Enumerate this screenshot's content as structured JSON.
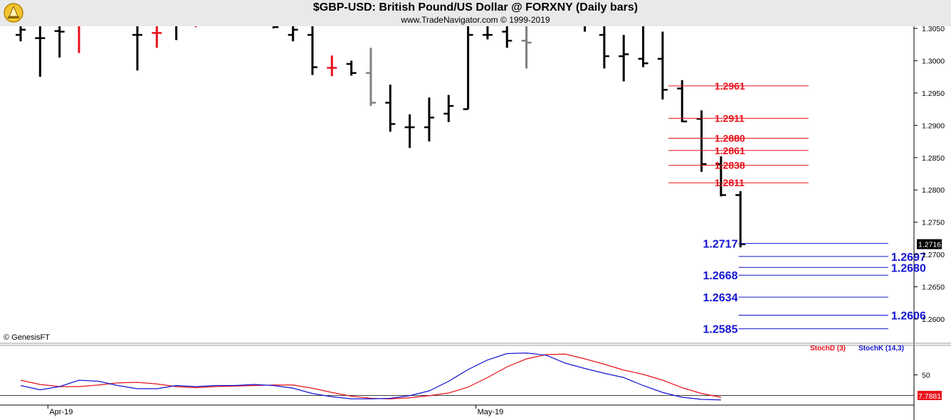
{
  "header": {
    "title": "$GBP-USD:  British Pound/US Dollar @ FORXNY  (Daily bars)",
    "subtitle": "www.TradeNavigator.com © 1999-2019"
  },
  "copyright": "© GenesisFT",
  "colors": {
    "up_bar": "#000000",
    "down_bar": "#e8101a",
    "neutral_bar": "#808080",
    "resistance": "#e8101a",
    "support": "#1414d2",
    "stoch_d": "#e8101a",
    "stoch_k": "#1414d2",
    "last_price_box": "#000000",
    "stoch_value_box": "#e8101a"
  },
  "chart_data": [
    {
      "type": "ohlc",
      "title": "$GBP-USD:  British Pound/US Dollar @ FORXNY  (Daily bars)",
      "y_ticks": [
        "1.2600",
        "1.2650",
        "1.2700",
        "1.2750",
        "1.2800",
        "1.2850",
        "1.2900",
        "1.2950",
        "1.3000",
        "1.3050"
      ],
      "ylim": [
        1.2573,
        1.306
      ],
      "x_ticks": [
        {
          "label": "Apr-19",
          "index": 1
        },
        {
          "label": "May-19",
          "index": 23
        }
      ],
      "last_price_label": "1.2716",
      "bars": [
        {
          "index": 0,
          "open": 1.304,
          "high": 1.3063,
          "low": 1.303,
          "close": 1.3048,
          "color": "up"
        },
        {
          "index": 1,
          "open": 1.3035,
          "high": 1.306,
          "low": 1.2975,
          "close": 1.3035,
          "color": "up"
        },
        {
          "index": 2,
          "open": 1.3046,
          "high": 1.3063,
          "low": 1.3005,
          "close": 1.3045,
          "color": "up"
        },
        {
          "index": 3,
          "open": 1.306,
          "high": 1.3063,
          "low": 1.3012,
          "close": 1.306,
          "color": "down"
        },
        {
          "index": 6,
          "open": 1.304,
          "high": 1.3063,
          "low": 1.2985,
          "close": 1.304,
          "color": "up"
        },
        {
          "index": 7,
          "open": 1.3043,
          "high": 1.306,
          "low": 1.302,
          "close": 1.3043,
          "color": "down"
        },
        {
          "index": 8,
          "open": 1.3055,
          "high": 1.3063,
          "low": 1.3032,
          "close": 1.3055,
          "color": "up"
        },
        {
          "index": 9,
          "open": 1.3058,
          "high": 1.3063,
          "low": 1.3052,
          "close": 1.3055,
          "color": "down"
        },
        {
          "index": 13,
          "open": 1.306,
          "high": 1.3063,
          "low": 1.305,
          "close": 1.3052,
          "color": "up"
        },
        {
          "index": 14,
          "open": 1.304,
          "high": 1.3063,
          "low": 1.303,
          "close": 1.3048,
          "color": "up"
        },
        {
          "index": 15,
          "open": 1.304,
          "high": 1.3063,
          "low": 1.2978,
          "close": 1.299,
          "color": "up"
        },
        {
          "index": 16,
          "open": 1.2989,
          "high": 1.3008,
          "low": 1.2976,
          "close": 1.2989,
          "color": "down"
        },
        {
          "index": 17,
          "open": 1.2995,
          "high": 1.3,
          "low": 1.2977,
          "close": 1.2981,
          "color": "up"
        },
        {
          "index": 18,
          "open": 1.2981,
          "high": 1.302,
          "low": 1.293,
          "close": 1.2935,
          "color": "neutral"
        },
        {
          "index": 19,
          "open": 1.2935,
          "high": 1.2963,
          "low": 1.289,
          "close": 1.2902,
          "color": "up"
        },
        {
          "index": 20,
          "open": 1.2897,
          "high": 1.2917,
          "low": 1.2865,
          "close": 1.2897,
          "color": "up"
        },
        {
          "index": 21,
          "open": 1.2897,
          "high": 1.2943,
          "low": 1.2875,
          "close": 1.2912,
          "color": "up"
        },
        {
          "index": 22,
          "open": 1.2918,
          "high": 1.2947,
          "low": 1.2905,
          "close": 1.293,
          "color": "up"
        },
        {
          "index": 23,
          "open": 1.2925,
          "high": 1.3058,
          "low": 1.2925,
          "close": 1.304,
          "color": "up"
        },
        {
          "index": 24,
          "open": 1.304,
          "high": 1.3063,
          "low": 1.3033,
          "close": 1.304,
          "color": "up"
        },
        {
          "index": 25,
          "open": 1.3045,
          "high": 1.3063,
          "low": 1.302,
          "close": 1.3031,
          "color": "up"
        },
        {
          "index": 26,
          "open": 1.3031,
          "high": 1.3063,
          "low": 1.2988,
          "close": 1.3028,
          "color": "neutral"
        },
        {
          "index": 29,
          "open": 1.3058,
          "high": 1.3063,
          "low": 1.3045,
          "close": 1.3055,
          "color": "up"
        },
        {
          "index": 30,
          "open": 1.304,
          "high": 1.3063,
          "low": 1.2988,
          "close": 1.3007,
          "color": "up"
        },
        {
          "index": 31,
          "open": 1.3007,
          "high": 1.304,
          "low": 1.2968,
          "close": 1.301,
          "color": "up"
        },
        {
          "index": 32,
          "open": 1.3003,
          "high": 1.306,
          "low": 1.299,
          "close": 1.2996,
          "color": "up"
        },
        {
          "index": 33,
          "open": 1.3003,
          "high": 1.3045,
          "low": 1.294,
          "close": 1.2955,
          "color": "up"
        },
        {
          "index": 34,
          "open": 1.2957,
          "high": 1.297,
          "low": 1.2905,
          "close": 1.2906,
          "color": "up"
        },
        {
          "index": 35,
          "open": 1.291,
          "high": 1.2923,
          "low": 1.2828,
          "close": 1.284,
          "color": "up"
        },
        {
          "index": 36,
          "open": 1.284,
          "high": 1.2852,
          "low": 1.279,
          "close": 1.2792,
          "color": "up"
        },
        {
          "index": 37,
          "open": 1.2792,
          "high": 1.2798,
          "low": 1.2711,
          "close": 1.2716,
          "color": "up"
        }
      ],
      "levels": [
        {
          "label": "1.2961",
          "value": 1.2961,
          "role": "resistance",
          "label_side": "right",
          "line_from_index": 33.3,
          "line_to_index": 40.5
        },
        {
          "label": "1.2911",
          "value": 1.2911,
          "role": "resistance",
          "label_side": "right",
          "line_from_index": 33.3,
          "line_to_index": 40.5
        },
        {
          "label": "1.2880",
          "value": 1.288,
          "role": "resistance",
          "label_side": "right",
          "line_from_index": 33.3,
          "line_to_index": 40.5
        },
        {
          "label": "1.2861",
          "value": 1.2861,
          "role": "resistance",
          "label_side": "right",
          "line_from_index": 33.3,
          "line_to_index": 40.5
        },
        {
          "label": "1.2838",
          "value": 1.2838,
          "role": "resistance",
          "label_side": "right",
          "line_from_index": 33.3,
          "line_to_index": 40.5
        },
        {
          "label": "1.2811",
          "value": 1.2811,
          "role": "resistance",
          "label_side": "right",
          "line_from_index": 33.3,
          "line_to_index": 40.5
        },
        {
          "label": "1.2717",
          "value": 1.2717,
          "role": "support",
          "label_side": "left",
          "line_from_index": 36.9,
          "line_to_index": 44.6
        },
        {
          "label": "1.2697",
          "value": 1.2697,
          "role": "support",
          "label_side": "right",
          "line_from_index": 36.9,
          "line_to_index": 44.6
        },
        {
          "label": "1.2680",
          "value": 1.268,
          "role": "support",
          "label_side": "right",
          "line_from_index": 36.9,
          "line_to_index": 44.6
        },
        {
          "label": "1.2668",
          "value": 1.2668,
          "role": "support",
          "label_side": "left",
          "line_from_index": 36.9,
          "line_to_index": 44.6
        },
        {
          "label": "1.2634",
          "value": 1.2634,
          "role": "support",
          "label_side": "left",
          "line_from_index": 36.9,
          "line_to_index": 44.6
        },
        {
          "label": "1.2606",
          "value": 1.2606,
          "role": "support",
          "label_side": "right",
          "line_from_index": 36.9,
          "line_to_index": 44.6
        },
        {
          "label": "1.2585",
          "value": 1.2585,
          "role": "support",
          "label_side": "left",
          "line_from_index": 36.9,
          "line_to_index": 44.6
        }
      ]
    },
    {
      "type": "line",
      "legend": [
        "StochD (3)",
        "StochK (14,3)"
      ],
      "legend_position": "top-right",
      "ylim": [
        0,
        100
      ],
      "y_ticks": [
        "50"
      ],
      "last_value_label": "7.7881",
      "series": [
        {
          "name": "StochD (3)",
          "points": [
            [
              0,
              40
            ],
            [
              1,
              32
            ],
            [
              2,
              28
            ],
            [
              3,
              28
            ],
            [
              4,
              31
            ],
            [
              5,
              35
            ],
            [
              6,
              36
            ],
            [
              7,
              33
            ],
            [
              8,
              28
            ],
            [
              9,
              26
            ],
            [
              10,
              28
            ],
            [
              11,
              29
            ],
            [
              12,
              30
            ],
            [
              13,
              31
            ],
            [
              14,
              31
            ],
            [
              15,
              25
            ],
            [
              16,
              17
            ],
            [
              17,
              10
            ],
            [
              18,
              6
            ],
            [
              19,
              5
            ],
            [
              20,
              7
            ],
            [
              21,
              11
            ],
            [
              22,
              16
            ],
            [
              23,
              27
            ],
            [
              24,
              45
            ],
            [
              25,
              65
            ],
            [
              26,
              80
            ],
            [
              27,
              88
            ],
            [
              28,
              89
            ],
            [
              29,
              80
            ],
            [
              30,
              70
            ],
            [
              31,
              59
            ],
            [
              32,
              51
            ],
            [
              33,
              40
            ],
            [
              34,
              26
            ],
            [
              35,
              15
            ],
            [
              36,
              8
            ]
          ]
        },
        {
          "name": "StochK (14,3)",
          "points": [
            [
              0,
              30
            ],
            [
              1,
              22
            ],
            [
              2,
              28
            ],
            [
              3,
              40
            ],
            [
              4,
              38
            ],
            [
              5,
              30
            ],
            [
              6,
              24
            ],
            [
              7,
              24
            ],
            [
              8,
              30
            ],
            [
              9,
              28
            ],
            [
              10,
              30
            ],
            [
              11,
              30
            ],
            [
              12,
              32
            ],
            [
              13,
              30
            ],
            [
              14,
              25
            ],
            [
              15,
              15
            ],
            [
              16,
              9
            ],
            [
              17,
              5
            ],
            [
              18,
              5
            ],
            [
              19,
              6
            ],
            [
              20,
              11
            ],
            [
              21,
              20
            ],
            [
              22,
              38
            ],
            [
              23,
              60
            ],
            [
              24,
              78
            ],
            [
              25,
              90
            ],
            [
              26,
              91
            ],
            [
              27,
              87
            ],
            [
              28,
              72
            ],
            [
              29,
              62
            ],
            [
              30,
              53
            ],
            [
              31,
              45
            ],
            [
              32,
              30
            ],
            [
              33,
              17
            ],
            [
              34,
              8
            ],
            [
              35,
              4
            ],
            [
              36,
              3
            ]
          ]
        }
      ]
    }
  ]
}
